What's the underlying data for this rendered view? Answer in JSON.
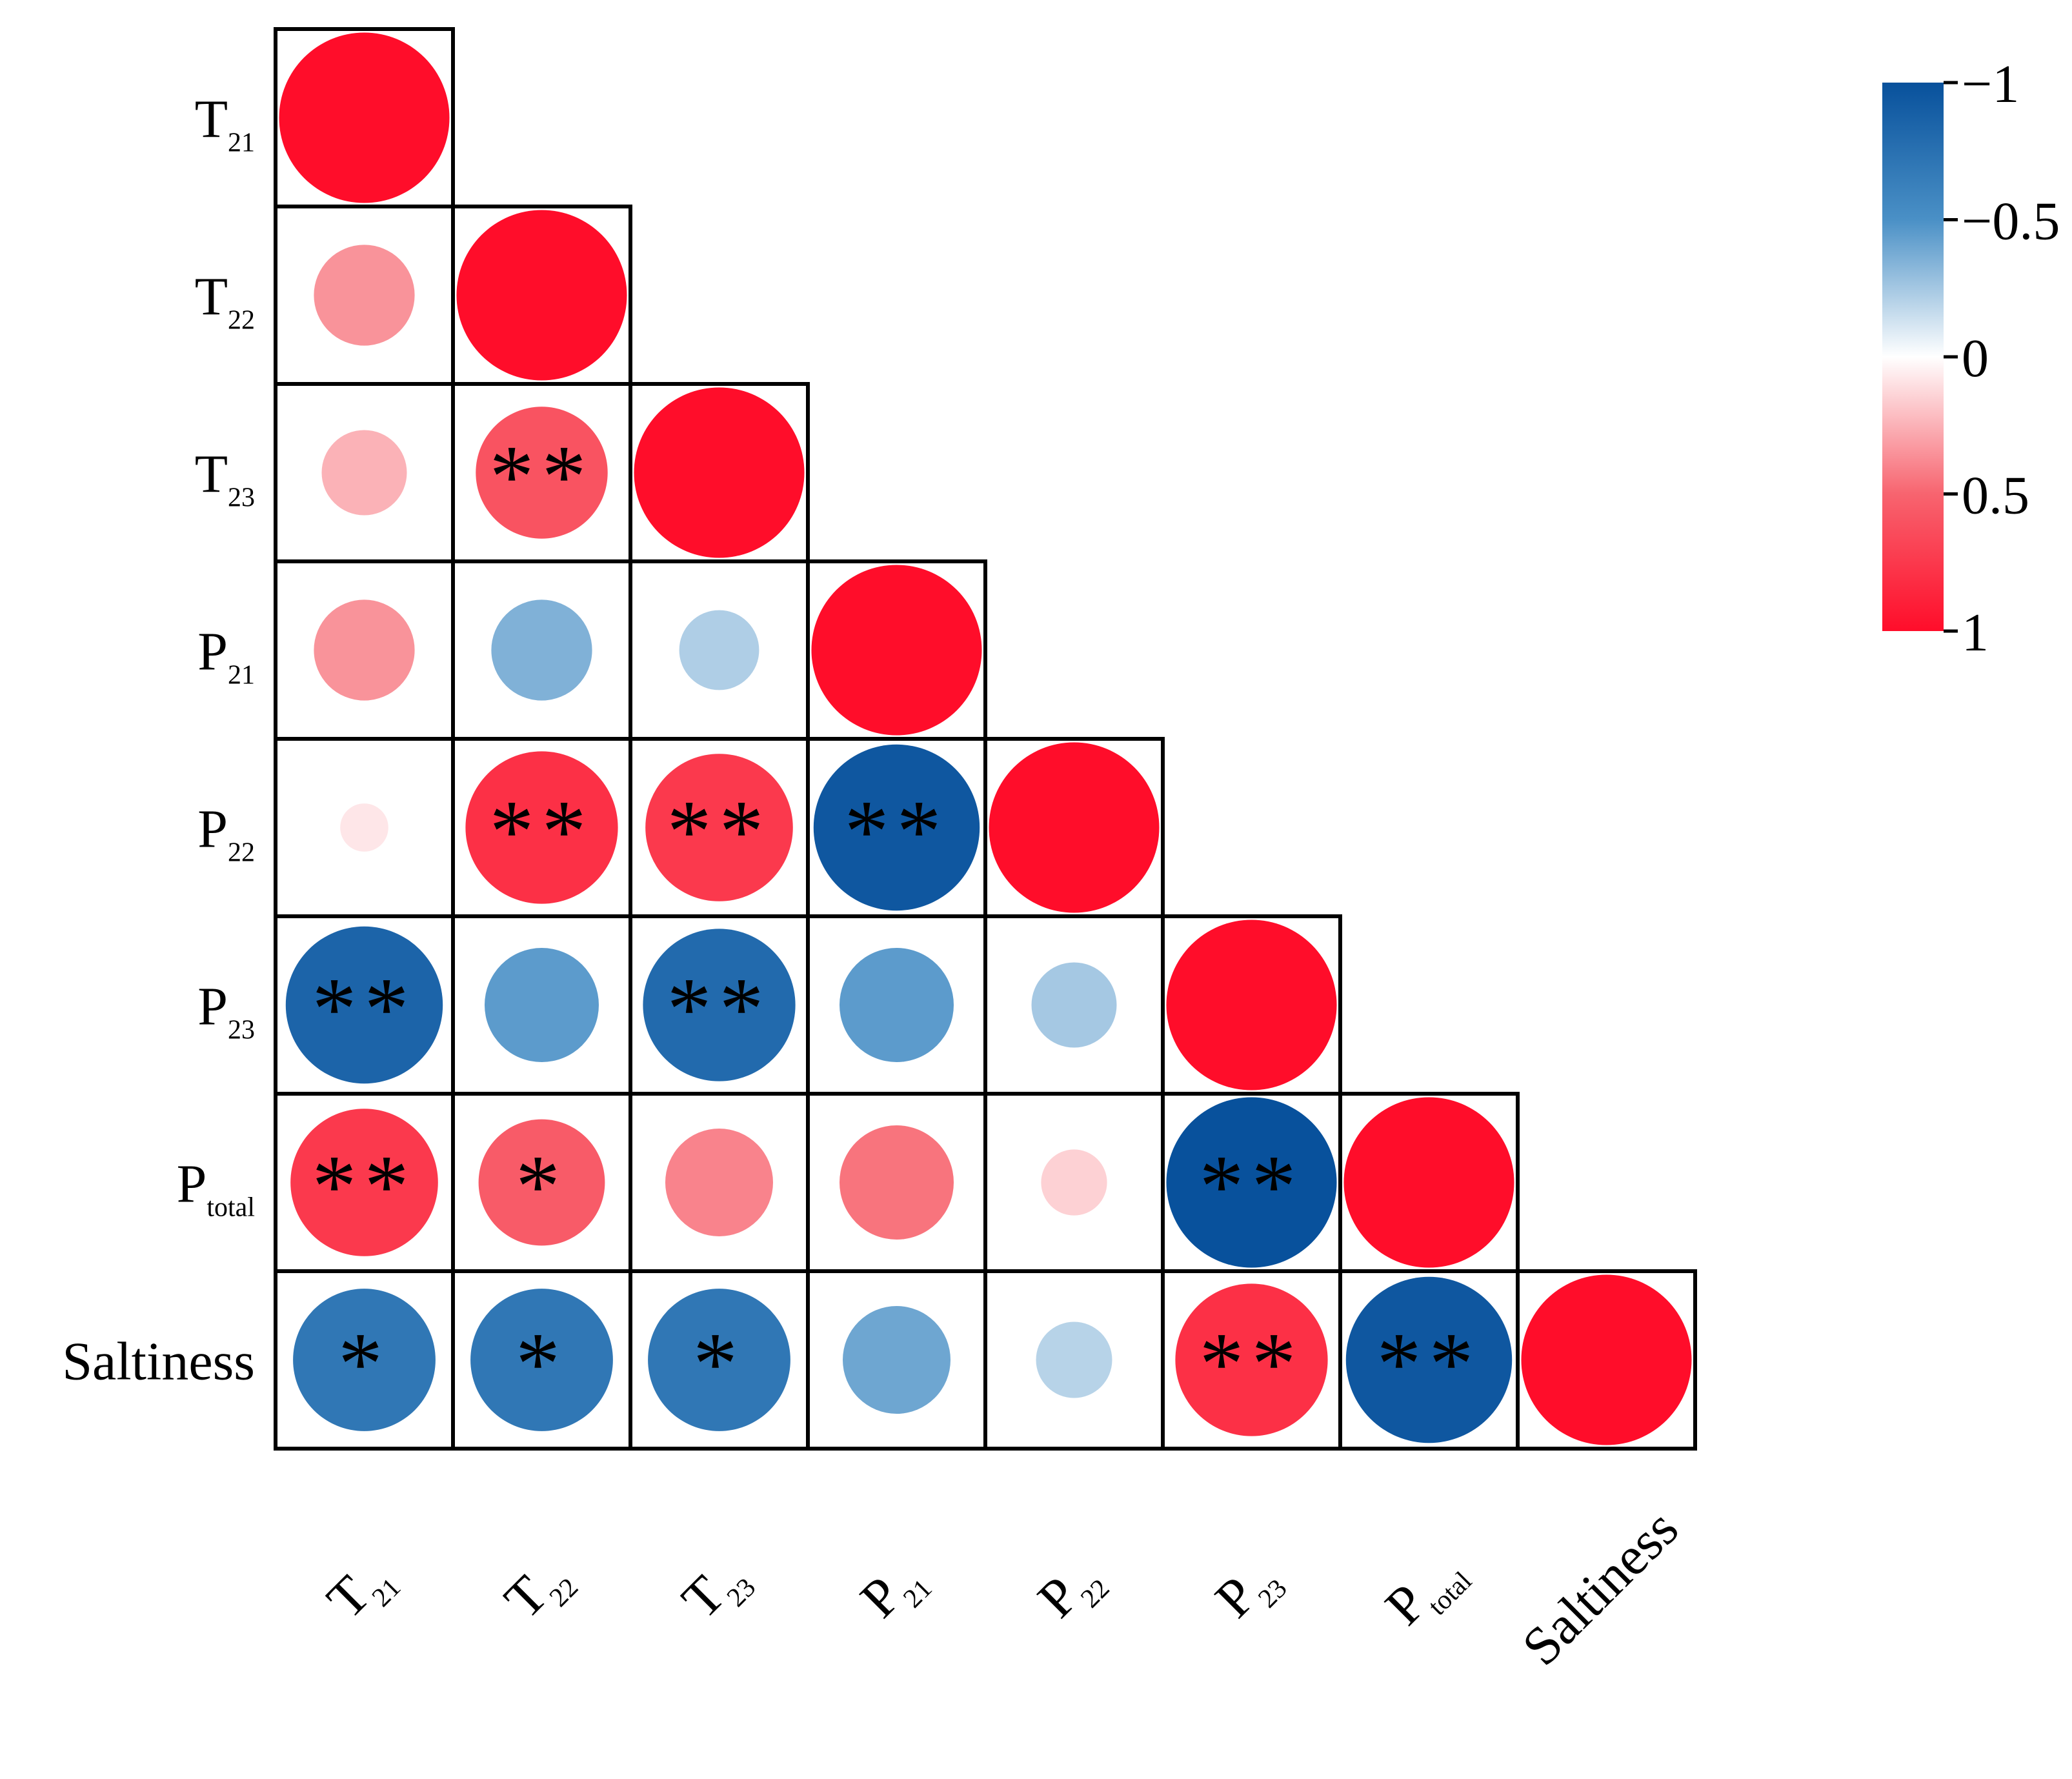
{
  "chart_data": {
    "type": "heatmap",
    "variables": [
      {
        "base": "T",
        "sub": "21"
      },
      {
        "base": "T",
        "sub": "22"
      },
      {
        "base": "T",
        "sub": "23"
      },
      {
        "base": "P",
        "sub": "21"
      },
      {
        "base": "P",
        "sub": "22"
      },
      {
        "base": "P",
        "sub": "23"
      },
      {
        "base": "P",
        "sub": "total"
      },
      {
        "base": "Saltiness",
        "sub": ""
      }
    ],
    "matrix": [
      [
        1
      ],
      [
        0.35,
        1
      ],
      [
        0.25,
        0.6,
        1
      ],
      [
        0.35,
        -0.35,
        -0.22,
        1
      ],
      [
        0.08,
        0.8,
        0.75,
        -0.95,
        1
      ],
      [
        -0.85,
        -0.45,
        -0.8,
        -0.45,
        -0.25,
        1
      ],
      [
        0.75,
        0.55,
        0.4,
        0.45,
        0.15,
        -1.0,
        1
      ],
      [
        -0.7,
        -0.7,
        -0.7,
        -0.4,
        -0.2,
        0.8,
        -0.95,
        1
      ]
    ],
    "significance": [
      [
        ""
      ],
      [
        "",
        ""
      ],
      [
        "",
        "**",
        ""
      ],
      [
        "",
        "",
        "",
        ""
      ],
      [
        "",
        "**",
        "**",
        "**",
        ""
      ],
      [
        "**",
        "",
        "**",
        "",
        "",
        ""
      ],
      [
        "**",
        "*",
        "",
        "",
        "",
        "**",
        ""
      ],
      [
        "*",
        "*",
        "*",
        "",
        "",
        "**",
        "**",
        ""
      ]
    ],
    "colorbar": {
      "ticks": [
        "−1",
        "−0.5",
        "0",
        "0.5",
        "1"
      ],
      "tick_values": [
        -1,
        -0.5,
        0,
        0.5,
        1
      ],
      "colors": {
        "negative": "#08519c",
        "mid_negative": "#4a90c6",
        "zero": "#ffffff",
        "mid_positive": "#f7646f",
        "positive": "#ff0d2a"
      }
    },
    "title": "",
    "xlabel": "",
    "ylabel": "",
    "grid": false
  }
}
